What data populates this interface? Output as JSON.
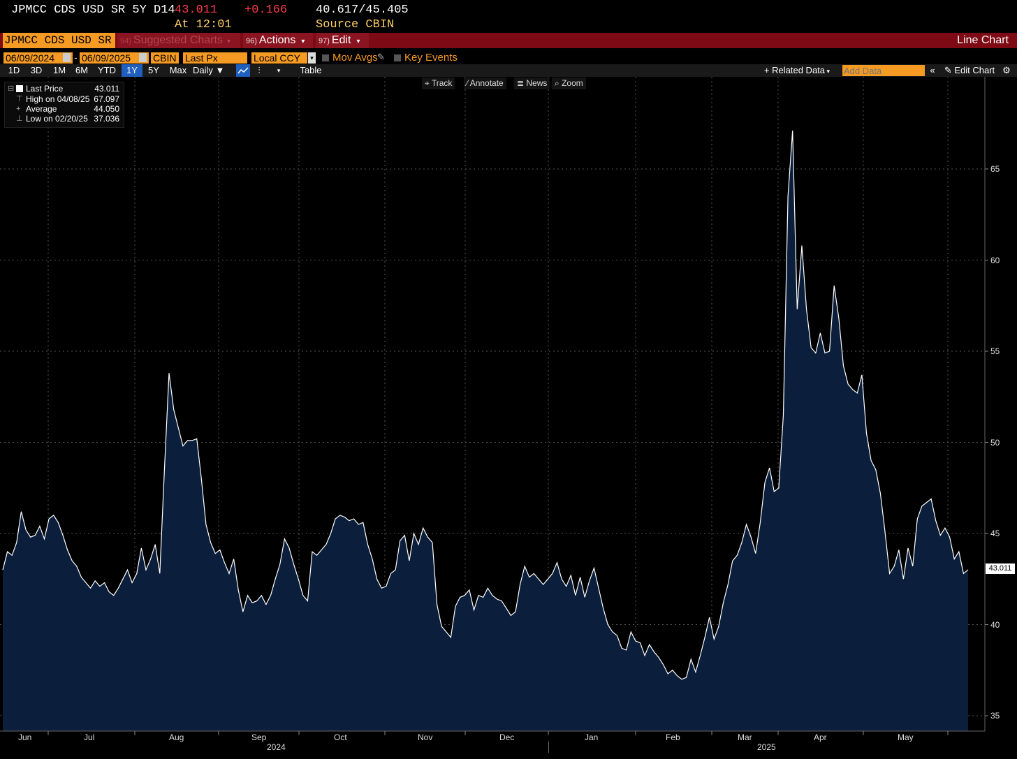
{
  "header": {
    "ticker": "JPMCC CDS USD SR 5Y D14",
    "last": "43.011",
    "change": "+0.166",
    "range": "40.617/45.405",
    "time": "At 12:01",
    "source": "Source CBIN"
  },
  "menubar": {
    "security": "JPMCC CDS USD SR",
    "suggested_num": "94)",
    "suggested": "Suggested Charts",
    "actions_num": "96)",
    "actions": "Actions",
    "edit_num": "97)",
    "edit": "Edit",
    "chart_type": "Line Chart"
  },
  "controls": {
    "start_date": "06/09/2024",
    "dash": "-",
    "end_date": "06/09/2025",
    "source": "CBIN",
    "field": "Last Px",
    "currency": "Local CCY",
    "mov_avgs": "Mov Avgs",
    "key_events": "Key Events"
  },
  "periods": [
    "1D",
    "3D",
    "1M",
    "6M",
    "YTD",
    "1Y",
    "5Y",
    "Max"
  ],
  "selected_period": "1Y",
  "frequency": "Daily",
  "table_label": "Table",
  "related_data": "Related Data",
  "add_data_placeholder": "Add Data",
  "edit_chart": "Edit Chart",
  "tools": [
    "Track",
    "Annotate",
    "News",
    "Zoom"
  ],
  "legend": {
    "last_label": "Last Price",
    "last_value": "43.011",
    "high_label": "High on 04/08/25",
    "high_value": "67.097",
    "avg_label": "Average",
    "avg_value": "44.050",
    "low_label": "Low on 02/20/25",
    "low_value": "37.036"
  },
  "colors": {
    "line": "#ffffff",
    "area": "#0b1e3b",
    "accent": "#f59a23",
    "bar": "#7d0a14",
    "up": "#ff3b4a"
  },
  "chart_data": {
    "type": "area",
    "series": [
      {
        "name": "Last Price"
      }
    ],
    "x_labels": [
      "Jun",
      "Jul",
      "Aug",
      "Sep",
      "Oct",
      "Nov",
      "Dec",
      "Jan",
      "Feb",
      "Mar",
      "Apr",
      "May"
    ],
    "year_labels": [
      "2024",
      "2025"
    ],
    "y_ticks": [
      35,
      40,
      45,
      50,
      55,
      60,
      65
    ],
    "ylim": [
      34.1,
      69.1
    ],
    "last_marker": "43.011",
    "values": [
      43.0,
      44.0,
      43.8,
      44.5,
      46.2,
      45.2,
      44.8,
      44.9,
      45.4,
      44.7,
      45.8,
      46.0,
      45.6,
      44.9,
      44.1,
      43.5,
      43.2,
      42.6,
      42.3,
      42.0,
      42.4,
      42.1,
      42.3,
      41.8,
      41.6,
      42.0,
      42.5,
      43.0,
      42.3,
      42.8,
      44.2,
      43.0,
      43.6,
      44.4,
      42.8,
      48.5,
      53.8,
      51.8,
      50.8,
      49.8,
      50.1,
      50.1,
      50.2,
      48.0,
      45.5,
      44.5,
      43.9,
      44.1,
      43.4,
      42.8,
      43.6,
      41.9,
      40.7,
      41.6,
      41.2,
      41.3,
      41.6,
      41.1,
      41.6,
      42.5,
      43.3,
      44.7,
      44.2,
      43.3,
      42.5,
      41.6,
      41.3,
      44.0,
      43.8,
      44.1,
      44.4,
      45.0,
      45.8,
      46.0,
      45.9,
      45.7,
      45.8,
      45.5,
      45.6,
      44.4,
      43.6,
      42.5,
      42.0,
      42.1,
      42.8,
      43.0,
      44.6,
      44.9,
      43.5,
      45.0,
      44.4,
      45.3,
      44.8,
      44.5,
      41.1,
      39.9,
      39.6,
      39.3,
      41.0,
      41.5,
      41.6,
      41.9,
      40.8,
      41.6,
      41.5,
      42.0,
      41.6,
      41.4,
      41.3,
      40.9,
      40.5,
      40.7,
      42.2,
      43.2,
      42.6,
      42.8,
      42.5,
      42.2,
      42.5,
      42.8,
      43.4,
      42.5,
      42.1,
      42.7,
      41.6,
      42.6,
      41.5,
      42.4,
      43.1,
      42.0,
      40.9,
      40.0,
      39.6,
      39.4,
      38.7,
      38.6,
      39.6,
      39.1,
      39.0,
      38.3,
      38.9,
      38.5,
      38.2,
      37.8,
      37.3,
      37.5,
      37.2,
      37.0,
      37.1,
      38.1,
      37.4,
      38.3,
      39.3,
      40.4,
      39.2,
      39.9,
      41.2,
      42.2,
      43.5,
      43.8,
      44.5,
      45.5,
      44.8,
      43.9,
      45.6,
      47.8,
      48.6,
      47.3,
      47.5,
      51.5,
      63.5,
      67.1,
      57.3,
      60.8,
      57.3,
      55.2,
      54.9,
      56.0,
      54.9,
      55.0,
      58.6,
      56.8,
      54.2,
      53.2,
      52.9,
      52.7,
      53.7,
      50.5,
      49.0,
      48.5,
      47.2,
      45.1,
      42.8,
      43.2,
      44.1,
      42.5,
      44.2,
      43.2,
      45.8,
      46.5,
      46.7,
      46.9,
      45.7,
      44.9,
      45.3,
      44.8,
      43.6,
      44.0,
      42.8,
      43.011
    ]
  }
}
